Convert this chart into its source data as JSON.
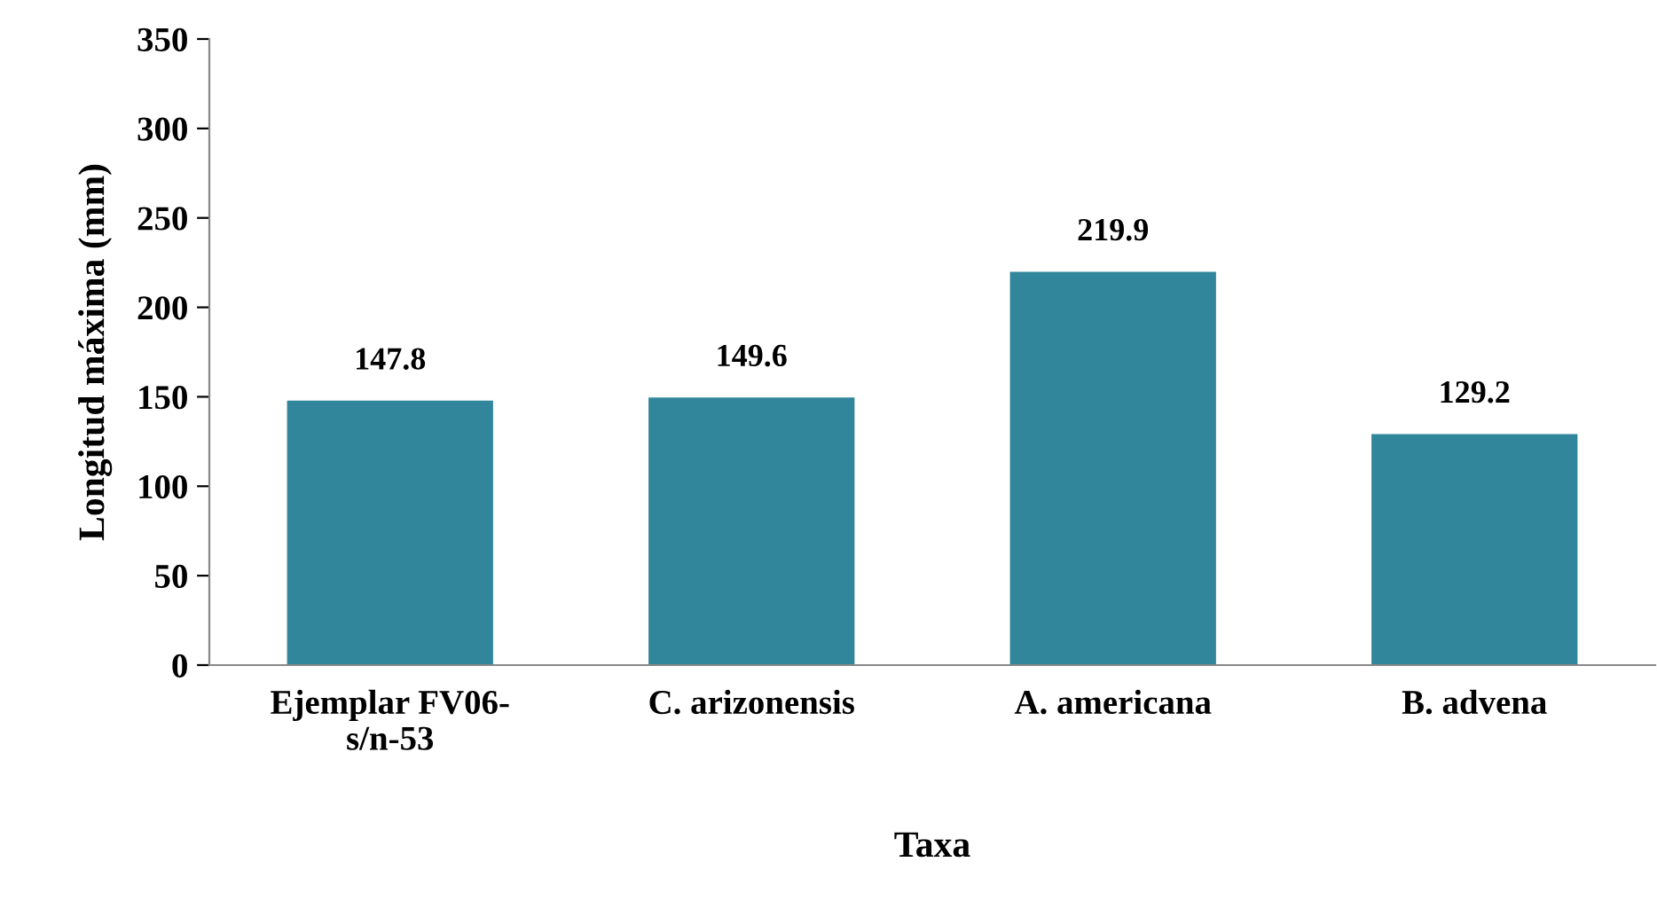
{
  "chart_data": {
    "type": "bar",
    "xlabel": "Taxa",
    "ylabel": "Longitud máxima (mm)",
    "categories": [
      "Ejemplar FV06-\ns/n-53",
      "C. arizonensis",
      "A. americana",
      "B. advena"
    ],
    "values": [
      147.8,
      149.6,
      219.9,
      129.2
    ],
    "color": "#31869b",
    "ylim": [
      0,
      350
    ],
    "yticks": [
      0,
      50,
      100,
      150,
      200,
      250,
      300,
      350
    ],
    "grid": false,
    "data_labels": true
  }
}
